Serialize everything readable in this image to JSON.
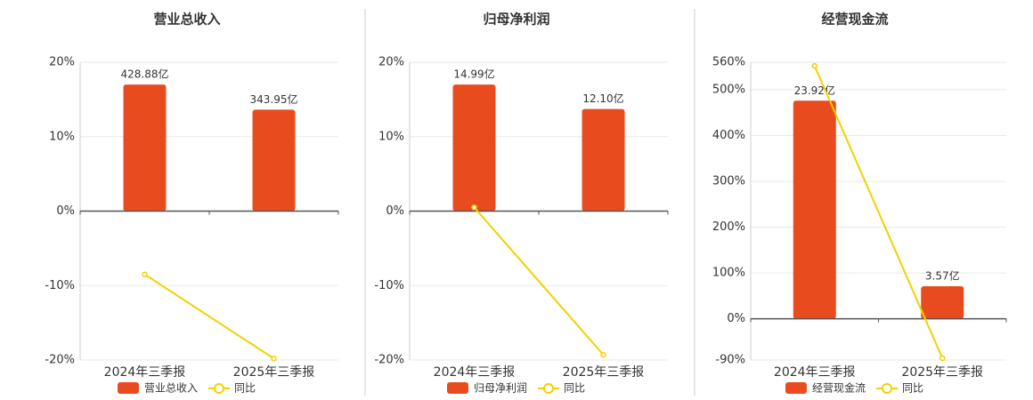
{
  "chart_data": [
    {
      "type": "combo",
      "title": "营业总收入",
      "categories": [
        "2024年三季报",
        "2025年三季报"
      ],
      "series": [
        {
          "name": "营业总收入",
          "color": "#e84c1e",
          "values": [
            428.88,
            343.95
          ],
          "value_labels": [
            "428.88亿",
            "343.95亿"
          ]
        },
        {
          "name": "同比",
          "color": "#f2d100",
          "values": [
            -8.5,
            -19.8
          ]
        }
      ],
      "ylim": [
        -20,
        20
      ],
      "yticks": [
        {
          "value": -20,
          "label": "-20%"
        },
        {
          "value": -10,
          "label": "-10%"
        },
        {
          "value": 0,
          "label": "0%"
        },
        {
          "value": 10,
          "label": "10%"
        },
        {
          "value": 20,
          "label": "20%"
        }
      ],
      "grid": true
    },
    {
      "type": "combo",
      "title": "归母净利润",
      "categories": [
        "2024年三季报",
        "2025年三季报"
      ],
      "series": [
        {
          "name": "归母净利润",
          "color": "#e84c1e",
          "values": [
            14.99,
            12.1
          ],
          "value_labels": [
            "14.99亿",
            "12.10亿"
          ]
        },
        {
          "name": "同比",
          "color": "#f2d100",
          "values": [
            0.5,
            -19.3
          ]
        }
      ],
      "ylim": [
        -20,
        20
      ],
      "yticks": [
        {
          "value": -20,
          "label": "-20%"
        },
        {
          "value": -10,
          "label": "-10%"
        },
        {
          "value": 0,
          "label": "0%"
        },
        {
          "value": 10,
          "label": "10%"
        },
        {
          "value": 20,
          "label": "20%"
        }
      ],
      "grid": true
    },
    {
      "type": "combo",
      "title": "经营现金流",
      "categories": [
        "2024年三季报",
        "2025年三季报"
      ],
      "series": [
        {
          "name": "经营现金流",
          "color": "#e84c1e",
          "values": [
            23.92,
            3.57
          ],
          "value_labels": [
            "23.92亿",
            "3.57亿"
          ]
        },
        {
          "name": "同比",
          "color": "#f2d100",
          "values": [
            552,
            -86
          ]
        }
      ],
      "ylim": [
        -90,
        560
      ],
      "yticks": [
        {
          "value": -90,
          "label": "-90%"
        },
        {
          "value": 0,
          "label": "0%"
        },
        {
          "value": 100,
          "label": "100%"
        },
        {
          "value": 200,
          "label": "200%"
        },
        {
          "value": 300,
          "label": "300%"
        },
        {
          "value": 400,
          "label": "400%"
        },
        {
          "value": 500,
          "label": "500%"
        },
        {
          "value": 560,
          "label": "560%"
        }
      ],
      "grid": true
    }
  ]
}
